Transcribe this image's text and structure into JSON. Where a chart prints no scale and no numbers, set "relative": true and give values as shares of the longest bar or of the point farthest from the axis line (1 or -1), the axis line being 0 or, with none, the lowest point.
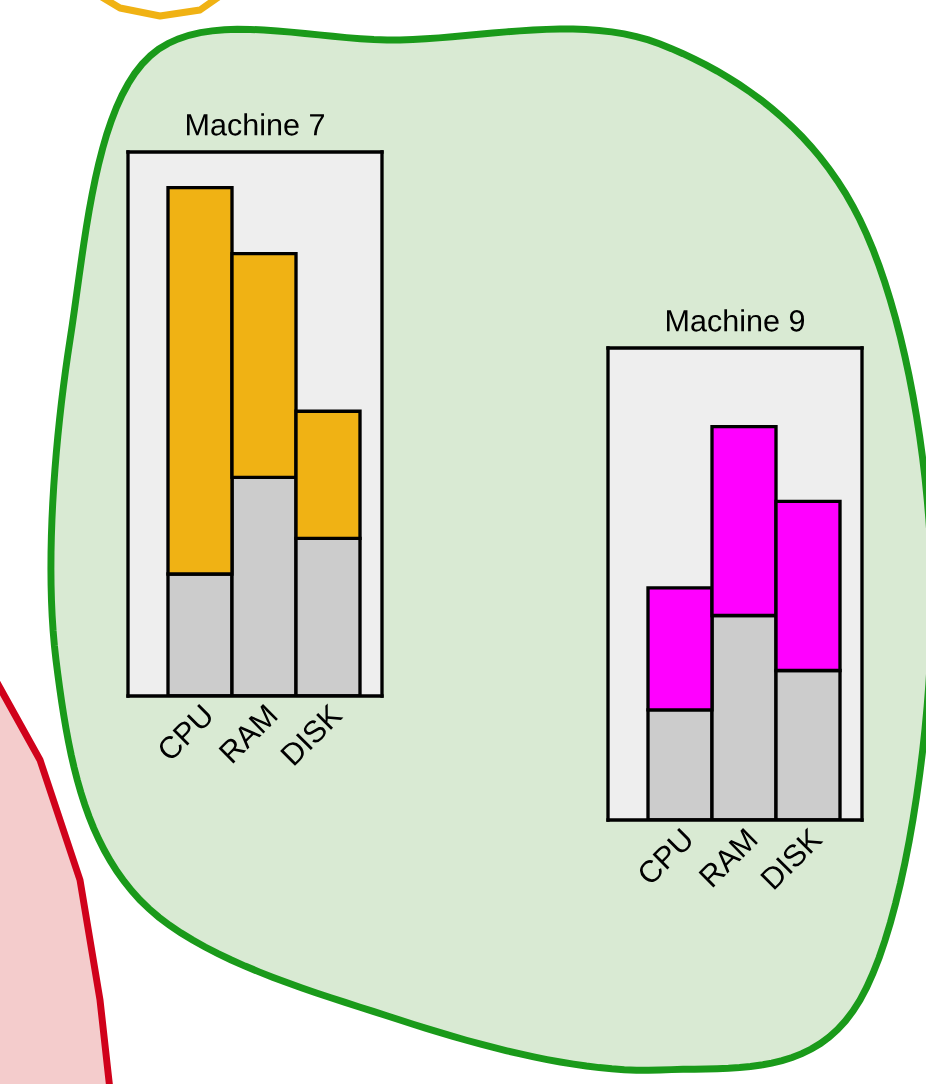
{
  "chart_data": [
    {
      "type": "bar",
      "title": "Machine 7",
      "categories": [
        "CPU",
        "RAM",
        "DISK"
      ],
      "stacked": true,
      "relative": true,
      "tick_labels": "x",
      "series": [
        {
          "color": "#cccccc",
          "values": [
            0.24,
            0.43,
            0.31
          ]
        },
        {
          "color": "#f0b214",
          "values": [
            0.76,
            0.44,
            0.25
          ]
        }
      ]
    },
    {
      "type": "bar",
      "title": "Machine 9",
      "categories": [
        "CPU",
        "RAM",
        "DISK"
      ],
      "stacked": true,
      "relative": true,
      "tick_labels": "x",
      "series": [
        {
          "color": "#cccccc",
          "values": [
            0.28,
            0.52,
            0.38
          ]
        },
        {
          "color": "#ff00ff",
          "values": [
            0.31,
            0.48,
            0.43
          ]
        }
      ]
    }
  ]
}
